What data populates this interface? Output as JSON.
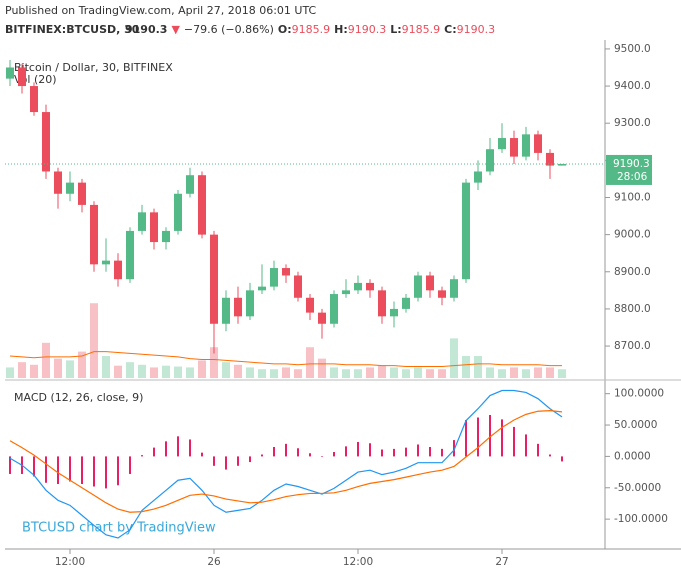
{
  "chart_data": {
    "type": "candlestick",
    "published": "Published on TradingView.com, April 27, 2018 06:01 UTC",
    "symbol": "BITFINEX:BTCUSD, 30",
    "change_arrow": "▼",
    "change": "−79.6 (−0.86%)",
    "ohlc_labels": [
      "O:",
      "H:",
      "L:",
      "C:"
    ],
    "title": "Bitcoin / Dollar, 30, BITFINEX",
    "volume_label": "Vol (20)",
    "macd_label": "MACD (12, 26, close, 9)",
    "watermark": "BTCUSD chart by TradingView",
    "countdown": "28:06",
    "up_color": "#53b987",
    "down_color": "#eb4d5c",
    "open": [
      9420,
      9450,
      9400,
      9330,
      9170,
      9110,
      9140,
      9080,
      8920,
      8930,
      8880,
      9010,
      9060,
      8980,
      9010,
      9110,
      9160,
      9000,
      8760,
      8830,
      8780,
      8850,
      8860,
      8910,
      8890,
      8830,
      8790,
      8760,
      8840,
      8850,
      8870,
      8850,
      8780,
      8800,
      8830,
      8890,
      8850,
      8830,
      8880,
      9140,
      9170,
      9230,
      9260,
      9210,
      9270,
      9220,
      9185.9
    ],
    "high": [
      9470,
      9460,
      9410,
      9350,
      9180,
      9170,
      9150,
      9090,
      8990,
      8950,
      9020,
      9080,
      9070,
      9020,
      9120,
      9180,
      9170,
      9010,
      8850,
      8860,
      8870,
      8920,
      8930,
      8920,
      8900,
      8840,
      8800,
      8850,
      8880,
      8890,
      8880,
      8860,
      8820,
      8840,
      8900,
      8900,
      8860,
      8890,
      9150,
      9200,
      9260,
      9300,
      9280,
      9290,
      9280,
      9230,
      9190.3
    ],
    "low": [
      9400,
      9380,
      9320,
      9150,
      9070,
      9090,
      9060,
      8900,
      8900,
      8860,
      8870,
      9000,
      8960,
      8960,
      9000,
      9100,
      8990,
      8680,
      8740,
      8760,
      8770,
      8840,
      8850,
      8870,
      8820,
      8770,
      8720,
      8750,
      8830,
      8840,
      8830,
      8760,
      8750,
      8790,
      8820,
      8830,
      8810,
      8820,
      8870,
      9120,
      9160,
      9220,
      9190,
      9200,
      9200,
      9150,
      9185.9
    ],
    "close": [
      9450,
      9400,
      9330,
      9170,
      9110,
      9140,
      9080,
      8920,
      8930,
      8880,
      9010,
      9060,
      8980,
      9010,
      9110,
      9160,
      9000,
      8760,
      8830,
      8780,
      8850,
      8860,
      8910,
      8890,
      8830,
      8790,
      8760,
      8840,
      8850,
      8870,
      8850,
      8780,
      8800,
      8830,
      8890,
      8850,
      8830,
      8880,
      9140,
      9170,
      9230,
      9260,
      9210,
      9270,
      9220,
      9185.9,
      9190.3
    ],
    "volume": [
      12,
      18,
      15,
      40,
      22,
      20,
      30,
      85,
      25,
      14,
      18,
      15,
      12,
      14,
      13,
      12,
      20,
      35,
      18,
      15,
      12,
      10,
      10,
      12,
      10,
      35,
      22,
      12,
      10,
      10,
      12,
      14,
      12,
      10,
      12,
      10,
      10,
      45,
      25,
      25,
      12,
      10,
      12,
      10,
      12,
      12,
      10
    ],
    "volume_ma": [
      25,
      24,
      23,
      24,
      24,
      24,
      25,
      30,
      30,
      29,
      28,
      27,
      26,
      25,
      24,
      22,
      21,
      21,
      20,
      19,
      18,
      17,
      16,
      16,
      15,
      16,
      16,
      16,
      15,
      15,
      15,
      14,
      14,
      13,
      13,
      13,
      13,
      14,
      15,
      16,
      16,
      15,
      15,
      15,
      15,
      14,
      14
    ],
    "vlim": [
      0,
      100
    ],
    "macd": [
      -3,
      -14,
      -30,
      -54,
      -70,
      -78,
      -94,
      -110,
      -125,
      -130,
      -117,
      -86,
      -70,
      -54,
      -38,
      -35,
      -54,
      -78,
      -89,
      -86,
      -83,
      -70,
      -54,
      -44,
      -48,
      -54,
      -60,
      -51,
      -38,
      -25,
      -22,
      -29,
      -25,
      -19,
      -10,
      -10,
      -10,
      10,
      57,
      76,
      97,
      105,
      105,
      102,
      92,
      76,
      63
    ],
    "signal": [
      25,
      14,
      2,
      -12,
      -26,
      -38,
      -50,
      -62,
      -74,
      -84,
      -89,
      -88,
      -84,
      -78,
      -70,
      -62,
      -60,
      -63,
      -68,
      -71,
      -74,
      -73,
      -69,
      -64,
      -61,
      -59,
      -59,
      -58,
      -54,
      -48,
      -43,
      -40,
      -37,
      -33,
      -29,
      -25,
      -22,
      -16,
      -1,
      14,
      31,
      46,
      58,
      67,
      72,
      73,
      71
    ],
    "histogram": [
      -28,
      -28,
      -32,
      -42,
      -44,
      -40,
      -44,
      -48,
      -51,
      -46,
      -28,
      2,
      14,
      24,
      32,
      27,
      6,
      -15,
      -21,
      -15,
      -9,
      3,
      15,
      20,
      13,
      5,
      -1,
      7,
      16,
      23,
      21,
      11,
      12,
      14,
      19,
      15,
      12,
      26,
      58,
      62,
      66,
      59,
      47,
      35,
      20,
      3,
      -8
    ],
    "macd_color": "#2196f3",
    "signal_color": "#ff6d00",
    "histogram_color": "#e91e63",
    "ylim": [
      8614,
      9524
    ],
    "yticks": [
      {
        "value": 9500,
        "label": "9500.0"
      },
      {
        "value": 9400,
        "label": "9400.0"
      },
      {
        "value": 9300,
        "label": "9300.0"
      },
      {
        "value": 9200,
        "label": "9200.0"
      },
      {
        "value": 9100,
        "label": "9100.0"
      },
      {
        "value": 9000,
        "label": "9000.0"
      },
      {
        "value": 8900,
        "label": "8900.0"
      },
      {
        "value": 8800,
        "label": "8800.0"
      },
      {
        "value": 8700,
        "label": "8700.0"
      }
    ],
    "y2lim": [
      -146,
      117
    ],
    "y2ticks": [
      {
        "value": 100,
        "label": "100.0000"
      },
      {
        "value": 50,
        "label": "50.0000"
      },
      {
        "value": 0,
        "label": "0.0000"
      },
      {
        "value": -50,
        "label": "-50.0000"
      },
      {
        "value": -100,
        "label": "-100.0000"
      }
    ],
    "xticks": [
      {
        "value": 5,
        "label": "12:00"
      },
      {
        "value": 17,
        "label": "26"
      },
      {
        "value": 29,
        "label": "12:00"
      },
      {
        "value": 41,
        "label": "27"
      }
    ]
  }
}
